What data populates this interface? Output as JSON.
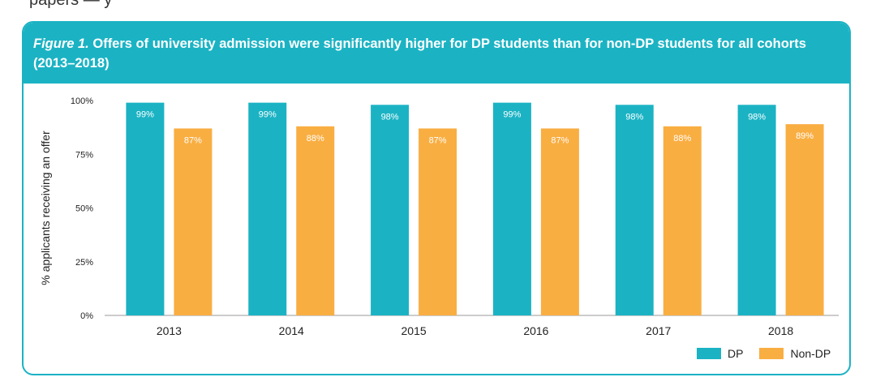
{
  "top_text": "                 papers   —    y",
  "figure": {
    "label": "Figure 1.",
    "caption": "Offers of university admission were significantly higher for DP students than for non-DP students for all cohorts (2013–2018)"
  },
  "chart_data": {
    "type": "bar",
    "categories": [
      "2013",
      "2014",
      "2015",
      "2016",
      "2017",
      "2018"
    ],
    "series": [
      {
        "name": "DP",
        "values": [
          99,
          99,
          98,
          99,
          98,
          98
        ],
        "labels": [
          "99%",
          "99%",
          "98%",
          "99%",
          "98%",
          "98%"
        ],
        "color": "#1bb3c4"
      },
      {
        "name": "Non-DP",
        "values": [
          87,
          88,
          87,
          87,
          88,
          89
        ],
        "labels": [
          "87%",
          "88%",
          "87%",
          "87%",
          "88%",
          "89%"
        ],
        "color": "#f9ae42"
      }
    ],
    "ylabel": "% applicants receiving an offer",
    "xlabel": "",
    "ylim": [
      0,
      100
    ],
    "yticks": [
      0,
      25,
      50,
      75,
      100
    ],
    "ytick_labels": [
      "0%",
      "25%",
      "50%",
      "75%",
      "100%"
    ],
    "grid": false,
    "legend": "bottom-right"
  }
}
